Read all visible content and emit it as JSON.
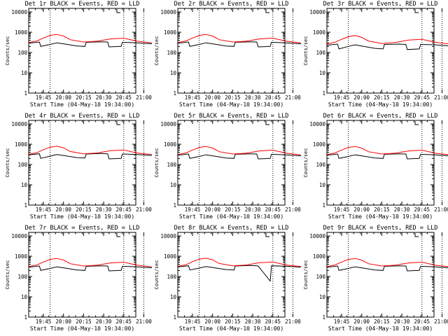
{
  "figure": {
    "background": "#ffffff",
    "events_color": "#000000",
    "lld_color": "#ff0000"
  },
  "chart_data": [
    {
      "type": "line",
      "title": "Det 1r BLACK = Events, RED = LLD",
      "xlabel": "Start Time (04-May-10 19:34:00)",
      "ylabel": "Counts/sec",
      "ylim": [
        1,
        15000
      ],
      "yscale": "log",
      "xlim_minutes": [
        0,
        80
      ],
      "x_tick_labels": [
        "19:45",
        "20:00",
        "20:15",
        "20:30",
        "20:45",
        "21:00"
      ],
      "y_tick_labels": [
        "1",
        "10",
        "100",
        "1000",
        "10000"
      ],
      "marker_lines_x": [
        "19:50",
        "20:45",
        "21:00"
      ],
      "series": [
        {
          "name": "Events",
          "color": "#000000",
          "x": [
            "19:34",
            "19:42",
            "19:43",
            "19:50",
            "19:55",
            "20:00",
            "20:10",
            "20:16",
            "20:17",
            "20:28",
            "20:33",
            "20:34",
            "20:43",
            "20:44",
            "20:55",
            "20:59",
            "21:06"
          ],
          "values": [
            290,
            330,
            200,
            250,
            300,
            270,
            210,
            200,
            320,
            340,
            330,
            190,
            200,
            320,
            300,
            290,
            270
          ]
        },
        {
          "name": "LLD",
          "color": "#ff0000",
          "x": [
            "19:34",
            "19:40",
            "19:45",
            "19:50",
            "19:55",
            "20:00",
            "20:05",
            "20:15",
            "20:25",
            "20:35",
            "20:45",
            "20:55",
            "21:06"
          ],
          "values": [
            310,
            370,
            520,
            700,
            780,
            650,
            430,
            330,
            360,
            470,
            510,
            360,
            300
          ]
        }
      ]
    },
    {
      "type": "line",
      "title": "Det 2r BLACK = Events, RED = LLD",
      "xlabel": "Start Time (04-May-10 19:34:00)",
      "ylabel": "Counts/sec",
      "ylim": [
        1,
        15000
      ],
      "yscale": "log",
      "xlim_minutes": [
        0,
        80
      ],
      "x_tick_labels": [
        "19:45",
        "20:00",
        "20:15",
        "20:30",
        "20:45",
        "21:00"
      ],
      "y_tick_labels": [
        "1",
        "10",
        "100",
        "1000",
        "10000"
      ],
      "marker_lines_x": [
        "19:50",
        "20:45",
        "21:00"
      ],
      "series": [
        {
          "name": "Events",
          "color": "#000000",
          "x": [
            "19:34",
            "19:42",
            "19:43",
            "19:50",
            "19:55",
            "20:00",
            "20:10",
            "20:16",
            "20:17",
            "20:28",
            "20:33",
            "20:34",
            "20:43",
            "20:44",
            "20:55",
            "20:59",
            "21:06"
          ],
          "values": [
            290,
            330,
            200,
            250,
            300,
            270,
            210,
            200,
            320,
            340,
            330,
            190,
            200,
            320,
            300,
            290,
            270
          ]
        },
        {
          "name": "LLD",
          "color": "#ff0000",
          "x": [
            "19:34",
            "19:40",
            "19:45",
            "19:50",
            "19:55",
            "20:00",
            "20:05",
            "20:15",
            "20:25",
            "20:35",
            "20:45",
            "20:55",
            "21:06"
          ],
          "values": [
            310,
            370,
            520,
            700,
            780,
            650,
            430,
            330,
            360,
            470,
            510,
            360,
            300
          ]
        }
      ]
    },
    {
      "type": "line",
      "title": "Det 3r BLACK = Events, RED = LLD",
      "xlabel": "Start Time (04-May-10 19:34:00)",
      "ylabel": "Counts/sec",
      "ylim": [
        1,
        15000
      ],
      "yscale": "log",
      "xlim_minutes": [
        0,
        80
      ],
      "x_tick_labels": [
        "19:45",
        "20:00",
        "20:15",
        "20:30",
        "20:45",
        "21:00"
      ],
      "y_tick_labels": [
        "1",
        "10",
        "100",
        "1000",
        "10000"
      ],
      "marker_lines_x": [
        "19:50",
        "20:45",
        "21:00"
      ],
      "series": [
        {
          "name": "Events",
          "color": "#000000",
          "x": [
            "19:34",
            "19:42",
            "19:43",
            "19:50",
            "19:55",
            "20:00",
            "20:10",
            "20:16",
            "20:17",
            "20:28",
            "20:33",
            "20:34",
            "20:43",
            "20:44",
            "20:55",
            "20:59",
            "21:06"
          ],
          "values": [
            230,
            260,
            150,
            200,
            240,
            210,
            160,
            150,
            250,
            260,
            250,
            140,
            150,
            250,
            240,
            230,
            210
          ]
        },
        {
          "name": "LLD",
          "color": "#ff0000",
          "x": [
            "19:34",
            "19:40",
            "19:45",
            "19:50",
            "19:55",
            "20:00",
            "20:05",
            "20:15",
            "20:25",
            "20:35",
            "20:45",
            "20:55",
            "21:06"
          ],
          "values": [
            260,
            320,
            450,
            600,
            690,
            560,
            370,
            280,
            310,
            410,
            450,
            320,
            260
          ]
        }
      ]
    },
    {
      "type": "line",
      "title": "Det 4r BLACK = Events, RED = LLD",
      "xlabel": "Start Time (04-May-10 19:34:00)",
      "ylabel": "Counts/sec",
      "ylim": [
        1,
        15000
      ],
      "yscale": "log",
      "xlim_minutes": [
        0,
        80
      ],
      "x_tick_labels": [
        "19:45",
        "20:00",
        "20:15",
        "20:30",
        "20:45",
        "21:00"
      ],
      "y_tick_labels": [
        "1",
        "10",
        "100",
        "1000",
        "10000"
      ],
      "marker_lines_x": [
        "19:50",
        "20:45",
        "21:00"
      ],
      "series": [
        {
          "name": "Events",
          "color": "#000000",
          "x": [
            "19:34",
            "19:42",
            "19:43",
            "19:50",
            "19:55",
            "20:00",
            "20:10",
            "20:16",
            "20:17",
            "20:28",
            "20:33",
            "20:34",
            "20:43",
            "20:44",
            "20:55",
            "20:59",
            "21:06"
          ],
          "values": [
            300,
            340,
            200,
            260,
            310,
            280,
            220,
            210,
            330,
            350,
            340,
            190,
            200,
            330,
            310,
            300,
            280
          ]
        },
        {
          "name": "LLD",
          "color": "#ff0000",
          "x": [
            "19:34",
            "19:40",
            "19:45",
            "19:50",
            "19:55",
            "20:00",
            "20:05",
            "20:15",
            "20:25",
            "20:35",
            "20:45",
            "20:55",
            "21:06"
          ],
          "values": [
            320,
            380,
            540,
            720,
            800,
            670,
            440,
            340,
            370,
            480,
            520,
            370,
            310
          ]
        }
      ]
    },
    {
      "type": "line",
      "title": "Det 5r BLACK = Events, RED = LLD",
      "xlabel": "Start Time (04-May-10 19:34:00)",
      "ylabel": "Counts/sec",
      "ylim": [
        1,
        15000
      ],
      "yscale": "log",
      "xlim_minutes": [
        0,
        80
      ],
      "x_tick_labels": [
        "19:45",
        "20:00",
        "20:15",
        "20:30",
        "20:45",
        "21:00"
      ],
      "y_tick_labels": [
        "1",
        "10",
        "100",
        "1000",
        "10000"
      ],
      "marker_lines_x": [
        "19:50",
        "20:45",
        "21:00"
      ],
      "series": [
        {
          "name": "Events",
          "color": "#000000",
          "x": [
            "19:34",
            "19:42",
            "19:43",
            "19:50",
            "19:55",
            "20:00",
            "20:10",
            "20:16",
            "20:17",
            "20:28",
            "20:33",
            "20:34",
            "20:43",
            "20:44",
            "20:55",
            "20:59",
            "21:06"
          ],
          "values": [
            290,
            330,
            200,
            250,
            300,
            270,
            210,
            200,
            320,
            340,
            330,
            190,
            200,
            320,
            300,
            290,
            270
          ]
        },
        {
          "name": "LLD",
          "color": "#ff0000",
          "x": [
            "19:34",
            "19:40",
            "19:45",
            "19:50",
            "19:55",
            "20:00",
            "20:05",
            "20:15",
            "20:25",
            "20:35",
            "20:45",
            "20:55",
            "21:06"
          ],
          "values": [
            310,
            370,
            520,
            700,
            780,
            650,
            430,
            330,
            360,
            470,
            510,
            360,
            300
          ]
        }
      ]
    },
    {
      "type": "line",
      "title": "Det 6r BLACK = Events, RED = LLD",
      "xlabel": "Start Time (04-May-10 19:34:00)",
      "ylabel": "Counts/sec",
      "ylim": [
        1,
        15000
      ],
      "yscale": "log",
      "xlim_minutes": [
        0,
        80
      ],
      "x_tick_labels": [
        "19:45",
        "20:00",
        "20:15",
        "20:30",
        "20:45",
        "21:00"
      ],
      "y_tick_labels": [
        "1",
        "10",
        "100",
        "1000",
        "10000"
      ],
      "marker_lines_x": [
        "19:50",
        "20:45",
        "21:00"
      ],
      "series": [
        {
          "name": "Events",
          "color": "#000000",
          "x": [
            "19:34",
            "19:42",
            "19:43",
            "19:50",
            "19:55",
            "20:00",
            "20:10",
            "20:16",
            "20:17",
            "20:28",
            "20:33",
            "20:34",
            "20:43",
            "20:44",
            "20:55",
            "20:59",
            "21:06"
          ],
          "values": [
            290,
            330,
            200,
            250,
            300,
            270,
            210,
            200,
            320,
            340,
            330,
            190,
            200,
            320,
            300,
            290,
            270
          ]
        },
        {
          "name": "LLD",
          "color": "#ff0000",
          "x": [
            "19:34",
            "19:40",
            "19:45",
            "19:50",
            "19:55",
            "20:00",
            "20:05",
            "20:15",
            "20:25",
            "20:35",
            "20:45",
            "20:55",
            "21:06"
          ],
          "values": [
            310,
            370,
            520,
            700,
            780,
            650,
            430,
            330,
            360,
            470,
            510,
            360,
            300
          ]
        }
      ]
    },
    {
      "type": "line",
      "title": "Det 7r BLACK = Events, RED = LLD",
      "xlabel": "Start Time (04-May-10 19:34:00)",
      "ylabel": "Counts/sec",
      "ylim": [
        1,
        15000
      ],
      "yscale": "log",
      "xlim_minutes": [
        0,
        80
      ],
      "x_tick_labels": [
        "19:45",
        "20:00",
        "20:15",
        "20:30",
        "20:45",
        "21:00"
      ],
      "y_tick_labels": [
        "1",
        "10",
        "100",
        "1000",
        "10000"
      ],
      "marker_lines_x": [
        "19:50",
        "20:45",
        "21:00"
      ],
      "series": [
        {
          "name": "Events",
          "color": "#000000",
          "x": [
            "19:34",
            "19:42",
            "19:43",
            "19:50",
            "19:55",
            "20:00",
            "20:10",
            "20:16",
            "20:17",
            "20:28",
            "20:33",
            "20:34",
            "20:43",
            "20:44",
            "20:55",
            "20:59",
            "21:06"
          ],
          "values": [
            290,
            330,
            200,
            250,
            300,
            270,
            210,
            200,
            320,
            340,
            330,
            190,
            200,
            320,
            300,
            290,
            270
          ]
        },
        {
          "name": "LLD",
          "color": "#ff0000",
          "x": [
            "19:34",
            "19:40",
            "19:45",
            "19:50",
            "19:55",
            "20:00",
            "20:05",
            "20:15",
            "20:25",
            "20:35",
            "20:45",
            "20:55",
            "21:06"
          ],
          "values": [
            310,
            370,
            520,
            700,
            780,
            650,
            430,
            330,
            360,
            470,
            510,
            360,
            300
          ]
        }
      ]
    },
    {
      "type": "line",
      "title": "Det 8r BLACK = Events, RED = LLD",
      "xlabel": "Start Time (04-May-10 19:34:00)",
      "ylabel": "Counts/sec",
      "ylim": [
        1,
        15000
      ],
      "yscale": "log",
      "xlim_minutes": [
        0,
        80
      ],
      "x_tick_labels": [
        "19:45",
        "20:00",
        "20:15",
        "20:30",
        "20:45",
        "21:00"
      ],
      "y_tick_labels": [
        "1",
        "10",
        "100",
        "1000",
        "10000"
      ],
      "marker_lines_x": [
        "19:50",
        "20:45",
        "21:00"
      ],
      "series": [
        {
          "name": "Events",
          "color": "#000000",
          "x": [
            "19:34",
            "19:42",
            "19:43",
            "19:50",
            "19:55",
            "20:00",
            "20:10",
            "20:16",
            "20:17",
            "20:28",
            "20:33",
            "20:34",
            "20:43",
            "20:44",
            "20:55",
            "20:59",
            "21:06"
          ],
          "values": [
            300,
            340,
            210,
            260,
            310,
            280,
            220,
            210,
            330,
            350,
            340,
            330,
            60,
            340,
            320,
            310,
            290
          ]
        },
        {
          "name": "LLD",
          "color": "#ff0000",
          "x": [
            "19:34",
            "19:40",
            "19:45",
            "19:50",
            "19:55",
            "20:00",
            "20:05",
            "20:15",
            "20:25",
            "20:35",
            "20:45",
            "20:55",
            "21:06"
          ],
          "values": [
            320,
            380,
            540,
            720,
            800,
            670,
            440,
            340,
            370,
            480,
            520,
            370,
            310
          ]
        }
      ]
    },
    {
      "type": "line",
      "title": "Det 9r BLACK = Events, RED = LLD",
      "xlabel": "Start Time (04-May-10 19:34:00)",
      "ylabel": "Counts/sec",
      "ylim": [
        1,
        15000
      ],
      "yscale": "log",
      "xlim_minutes": [
        0,
        80
      ],
      "x_tick_labels": [
        "19:45",
        "20:00",
        "20:15",
        "20:30",
        "20:45",
        "21:00"
      ],
      "y_tick_labels": [
        "1",
        "10",
        "100",
        "1000",
        "10000"
      ],
      "marker_lines_x": [
        "19:50",
        "20:45",
        "21:00"
      ],
      "series": [
        {
          "name": "Events",
          "color": "#000000",
          "x": [
            "19:34",
            "19:42",
            "19:43",
            "19:50",
            "19:55",
            "20:00",
            "20:10",
            "20:16",
            "20:17",
            "20:28",
            "20:33",
            "20:34",
            "20:43",
            "20:44",
            "20:55",
            "20:59",
            "21:06"
          ],
          "values": [
            290,
            330,
            200,
            250,
            300,
            270,
            210,
            200,
            320,
            340,
            330,
            190,
            200,
            320,
            300,
            290,
            270
          ]
        },
        {
          "name": "LLD",
          "color": "#ff0000",
          "x": [
            "19:34",
            "19:40",
            "19:45",
            "19:50",
            "19:55",
            "20:00",
            "20:05",
            "20:15",
            "20:25",
            "20:35",
            "20:45",
            "20:55",
            "21:06"
          ],
          "values": [
            310,
            370,
            520,
            700,
            780,
            650,
            430,
            330,
            360,
            470,
            510,
            360,
            300
          ]
        }
      ]
    }
  ]
}
